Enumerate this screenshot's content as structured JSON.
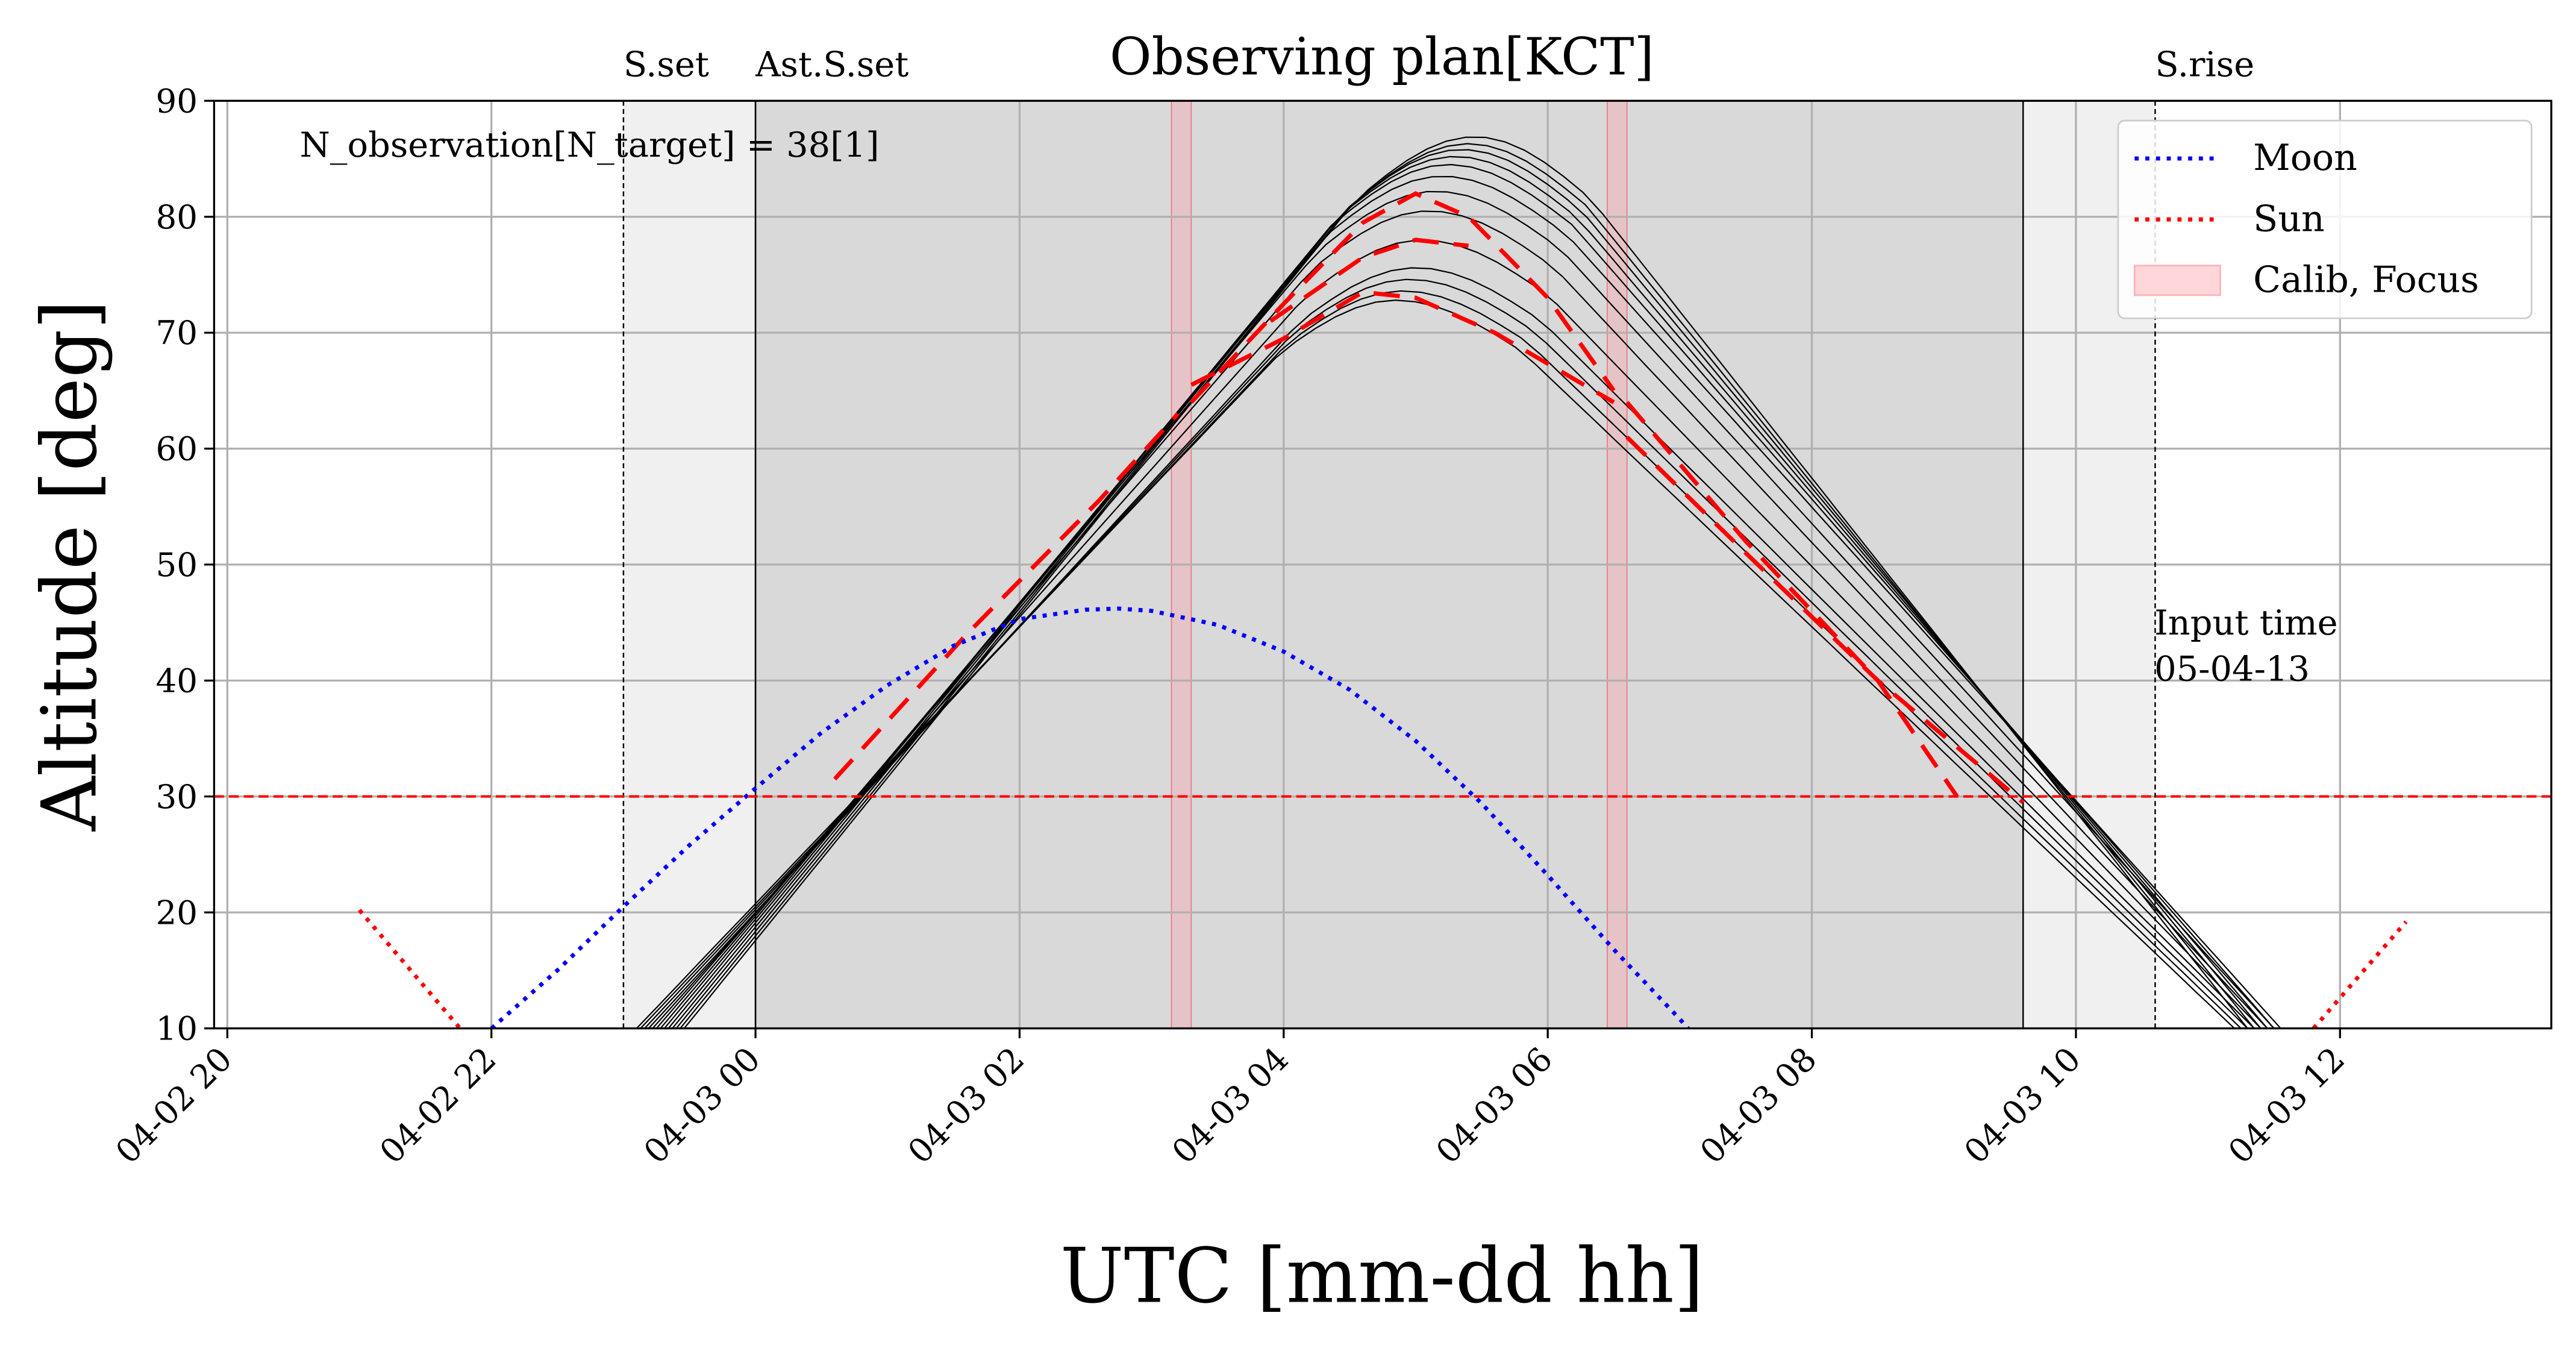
{
  "chart_data": {
    "type": "line",
    "title": "Observing plan[KCT]",
    "xlabel": "UTC [mm-dd hh]",
    "ylabel": "Altitude [deg]",
    "xlim": [
      -4.1,
      13.6
    ],
    "ylim": [
      10,
      90
    ],
    "grid": true,
    "legend_position": "top-right",
    "x_ticks": [
      {
        "x": -4,
        "label": "04-02 20"
      },
      {
        "x": -2,
        "label": "04-02 22"
      },
      {
        "x": 0,
        "label": "04-03 00"
      },
      {
        "x": 2,
        "label": "04-03 02"
      },
      {
        "x": 4,
        "label": "04-03 04"
      },
      {
        "x": 6,
        "label": "04-03 06"
      },
      {
        "x": 8,
        "label": "04-03 08"
      },
      {
        "x": 10,
        "label": "04-03 10"
      },
      {
        "x": 12,
        "label": "04-03 12"
      }
    ],
    "y_ticks": [
      10,
      20,
      30,
      40,
      50,
      60,
      70,
      80,
      90
    ],
    "annotation": "N_observation[N_target] = 38[1]",
    "input_time_label": "Input time\n 05-04-13",
    "events": [
      {
        "label": "S.set",
        "x": -1.0,
        "style": "dashed"
      },
      {
        "label": "Ast.S.set",
        "x": 0.0,
        "style": "solid"
      },
      {
        "label": "S.rise",
        "x": 10.6,
        "style": "dashed"
      },
      {
        "label": "",
        "x": 9.6,
        "style": "solid"
      }
    ],
    "shaded_regions": [
      {
        "from": -1.0,
        "to": 0.0,
        "color": "#f0f0f0"
      },
      {
        "from": 0.0,
        "to": 9.6,
        "color": "#d9d9d9"
      },
      {
        "from": 9.6,
        "to": 10.6,
        "color": "#f0f0f0"
      }
    ],
    "calib_focus_windows": [
      {
        "from": 3.15,
        "to": 3.3
      },
      {
        "from": 6.45,
        "to": 6.6
      }
    ],
    "altitude_limit": 30,
    "legend": [
      {
        "label": "Moon",
        "color": "#0000ff",
        "style": "dotted"
      },
      {
        "label": "Sun",
        "color": "#ff0000",
        "style": "dotted"
      },
      {
        "label": "Calib, Focus",
        "color": "#ffd6d9",
        "style": "patch"
      }
    ],
    "series": [
      {
        "name": "Moon",
        "color": "#0000ff",
        "style": "dotted",
        "x": [
          -2.0,
          -1.5,
          -1.0,
          -0.5,
          0.0,
          0.5,
          1.0,
          1.5,
          2.0,
          2.5,
          2.75,
          3.0,
          3.5,
          4.0,
          4.5,
          5.0,
          5.5,
          6.0,
          6.5,
          7.0,
          7.5
        ],
        "y": [
          10.0,
          15.0,
          20.5,
          25.8,
          30.7,
          35.5,
          39.6,
          43.0,
          45.3,
          46.1,
          46.2,
          46.0,
          44.8,
          42.5,
          39.2,
          34.8,
          29.4,
          23.2,
          16.8,
          10.8,
          4.5
        ]
      },
      {
        "name": "Sun",
        "color": "#ff0000",
        "style": "dotted",
        "x": [
          -3.0,
          -2.2
        ],
        "y": [
          20.2,
          9.5
        ]
      },
      {
        "name": "",
        "color": "#ff0000",
        "style": "dotted",
        "x": [
          11.8,
          12.5
        ],
        "y": [
          10.0,
          19.2
        ]
      }
    ],
    "target_tracks": {
      "color": "#000000",
      "rise_start_x": [
        -0.9,
        -0.87,
        -0.84,
        -0.81,
        -0.78,
        -0.75,
        -0.72,
        -0.69,
        -0.66,
        -0.63,
        -0.6,
        -0.57,
        -0.54
      ],
      "peak_x": [
        4.85,
        4.9,
        4.95,
        5.0,
        5.05,
        5.1,
        5.15,
        5.2,
        5.25,
        5.3,
        5.35,
        5.4,
        5.45
      ],
      "peak_y": [
        72.8,
        73.6,
        74.6,
        75.6,
        78.0,
        80.5,
        82.2,
        83.5,
        84.5,
        85.2,
        85.8,
        86.3,
        86.9
      ],
      "end_x": [
        11.2,
        11.25,
        11.3,
        11.35,
        11.4,
        11.45,
        11.5,
        11.55,
        11.5,
        11.45,
        11.4,
        11.35,
        11.3
      ]
    },
    "planned_track": {
      "color": "#ff0000",
      "style": "dashed",
      "segments": [
        {
          "x": [
            0.6,
            1.6,
            2.6,
            3.2
          ],
          "y": [
            31.5,
            44.0,
            55.5,
            63.0
          ]
        },
        {
          "x": [
            3.3,
            4.0,
            4.6,
            5.0,
            5.4,
            6.0,
            6.5
          ],
          "y": [
            64.0,
            72.5,
            79.5,
            82.0,
            80.0,
            73.0,
            65.0
          ]
        },
        {
          "x": [
            3.3,
            4.0,
            4.6,
            5.0,
            5.6,
            6.5
          ],
          "y": [
            65.5,
            69.5,
            73.5,
            73.0,
            70.0,
            64.0
          ]
        },
        {
          "x": [
            3.9,
            4.6,
            5.0,
            5.4
          ],
          "y": [
            71.0,
            76.5,
            78.0,
            77.5
          ]
        },
        {
          "x": [
            6.6,
            7.5,
            8.5,
            9.1
          ],
          "y": [
            64.0,
            52.0,
            40.0,
            30.0
          ]
        },
        {
          "x": [
            6.6,
            7.5,
            8.5,
            9.6
          ],
          "y": [
            61.0,
            51.0,
            40.0,
            29.5
          ]
        }
      ]
    }
  }
}
